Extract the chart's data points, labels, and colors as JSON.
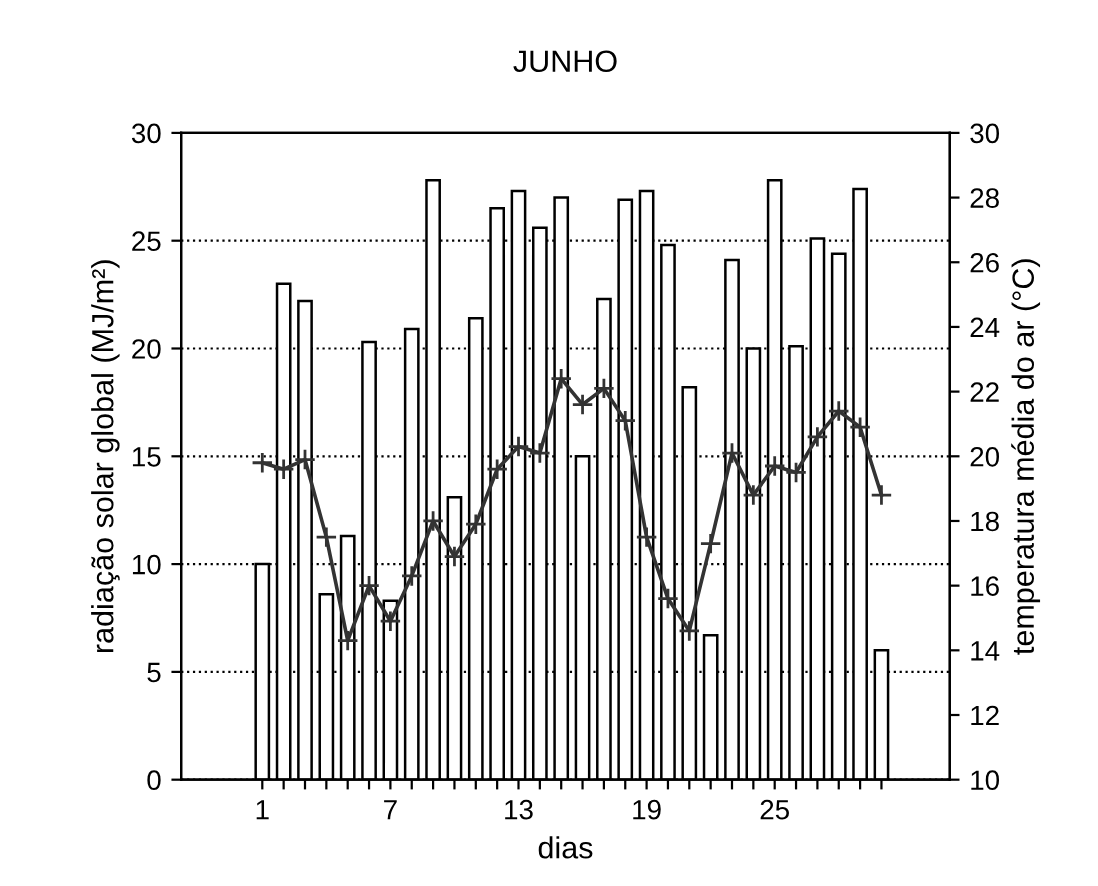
{
  "chart_data": {
    "type": "bar",
    "title": "JUNHO",
    "xlabel": "dias",
    "ylabel": "radiação solar global (MJ/m²)",
    "y2label": "temperatura média do ar (°C)",
    "x": [
      1,
      2,
      3,
      4,
      5,
      6,
      7,
      8,
      9,
      10,
      11,
      12,
      13,
      14,
      15,
      16,
      17,
      18,
      19,
      20,
      21,
      22,
      23,
      24,
      25,
      26,
      27,
      28,
      29,
      30
    ],
    "xlim": [
      -2.8,
      33.2
    ],
    "xticks": [
      1,
      {
        "value": 2,
        "label": null
      },
      {
        "value": 3,
        "label": null
      },
      {
        "value": 4,
        "label": null
      },
      {
        "value": 5,
        "label": null
      },
      {
        "value": 6,
        "label": null
      },
      7,
      {
        "value": 8,
        "label": null
      },
      {
        "value": 9,
        "label": null
      },
      {
        "value": 10,
        "label": null
      },
      {
        "value": 11,
        "label": null
      },
      {
        "value": 12,
        "label": null
      },
      13,
      {
        "value": 14,
        "label": null
      },
      {
        "value": 15,
        "label": null
      },
      {
        "value": 16,
        "label": null
      },
      {
        "value": 17,
        "label": null
      },
      {
        "value": 18,
        "label": null
      },
      19,
      {
        "value": 20,
        "label": null
      },
      {
        "value": 21,
        "label": null
      },
      {
        "value": 22,
        "label": null
      },
      {
        "value": 23,
        "label": null
      },
      {
        "value": 24,
        "label": null
      },
      25,
      {
        "value": 26,
        "label": null
      },
      {
        "value": 27,
        "label": null
      },
      {
        "value": 28,
        "label": null
      },
      {
        "value": 29,
        "label": null
      },
      {
        "value": 30,
        "label": null
      }
    ],
    "ylim": [
      0,
      30
    ],
    "yticks": [
      0,
      5,
      10,
      15,
      20,
      25,
      30
    ],
    "y2lim": [
      10,
      30
    ],
    "y2ticks": [
      10,
      12,
      14,
      16,
      18,
      20,
      22,
      24,
      26,
      28,
      30
    ],
    "grid": "y",
    "legend": false,
    "series": [
      {
        "color": "#ffffff",
        "values": [
          10.0,
          23.0,
          22.2,
          8.6,
          11.3,
          20.3,
          8.3,
          20.9,
          27.8,
          13.1,
          21.4,
          26.5,
          27.3,
          25.6,
          27.0,
          15.0,
          22.3,
          26.9,
          27.3,
          24.8,
          18.2,
          6.7,
          24.1,
          20.0,
          27.8,
          20.1,
          25.1,
          24.4,
          27.4,
          6.0
        ]
      },
      {
        "type": "line",
        "axis": "y2",
        "color": "#333333",
        "marker": "cross",
        "line_style": "solid",
        "values": [
          19.8,
          19.6,
          19.9,
          17.5,
          14.3,
          16.0,
          14.9,
          16.3,
          18.0,
          16.9,
          17.9,
          19.6,
          20.3,
          20.1,
          22.4,
          21.6,
          22.1,
          21.1,
          17.5,
          15.6,
          14.6,
          17.3,
          20.1,
          18.8,
          19.7,
          19.5,
          20.6,
          21.4,
          20.9,
          18.8
        ]
      }
    ]
  }
}
